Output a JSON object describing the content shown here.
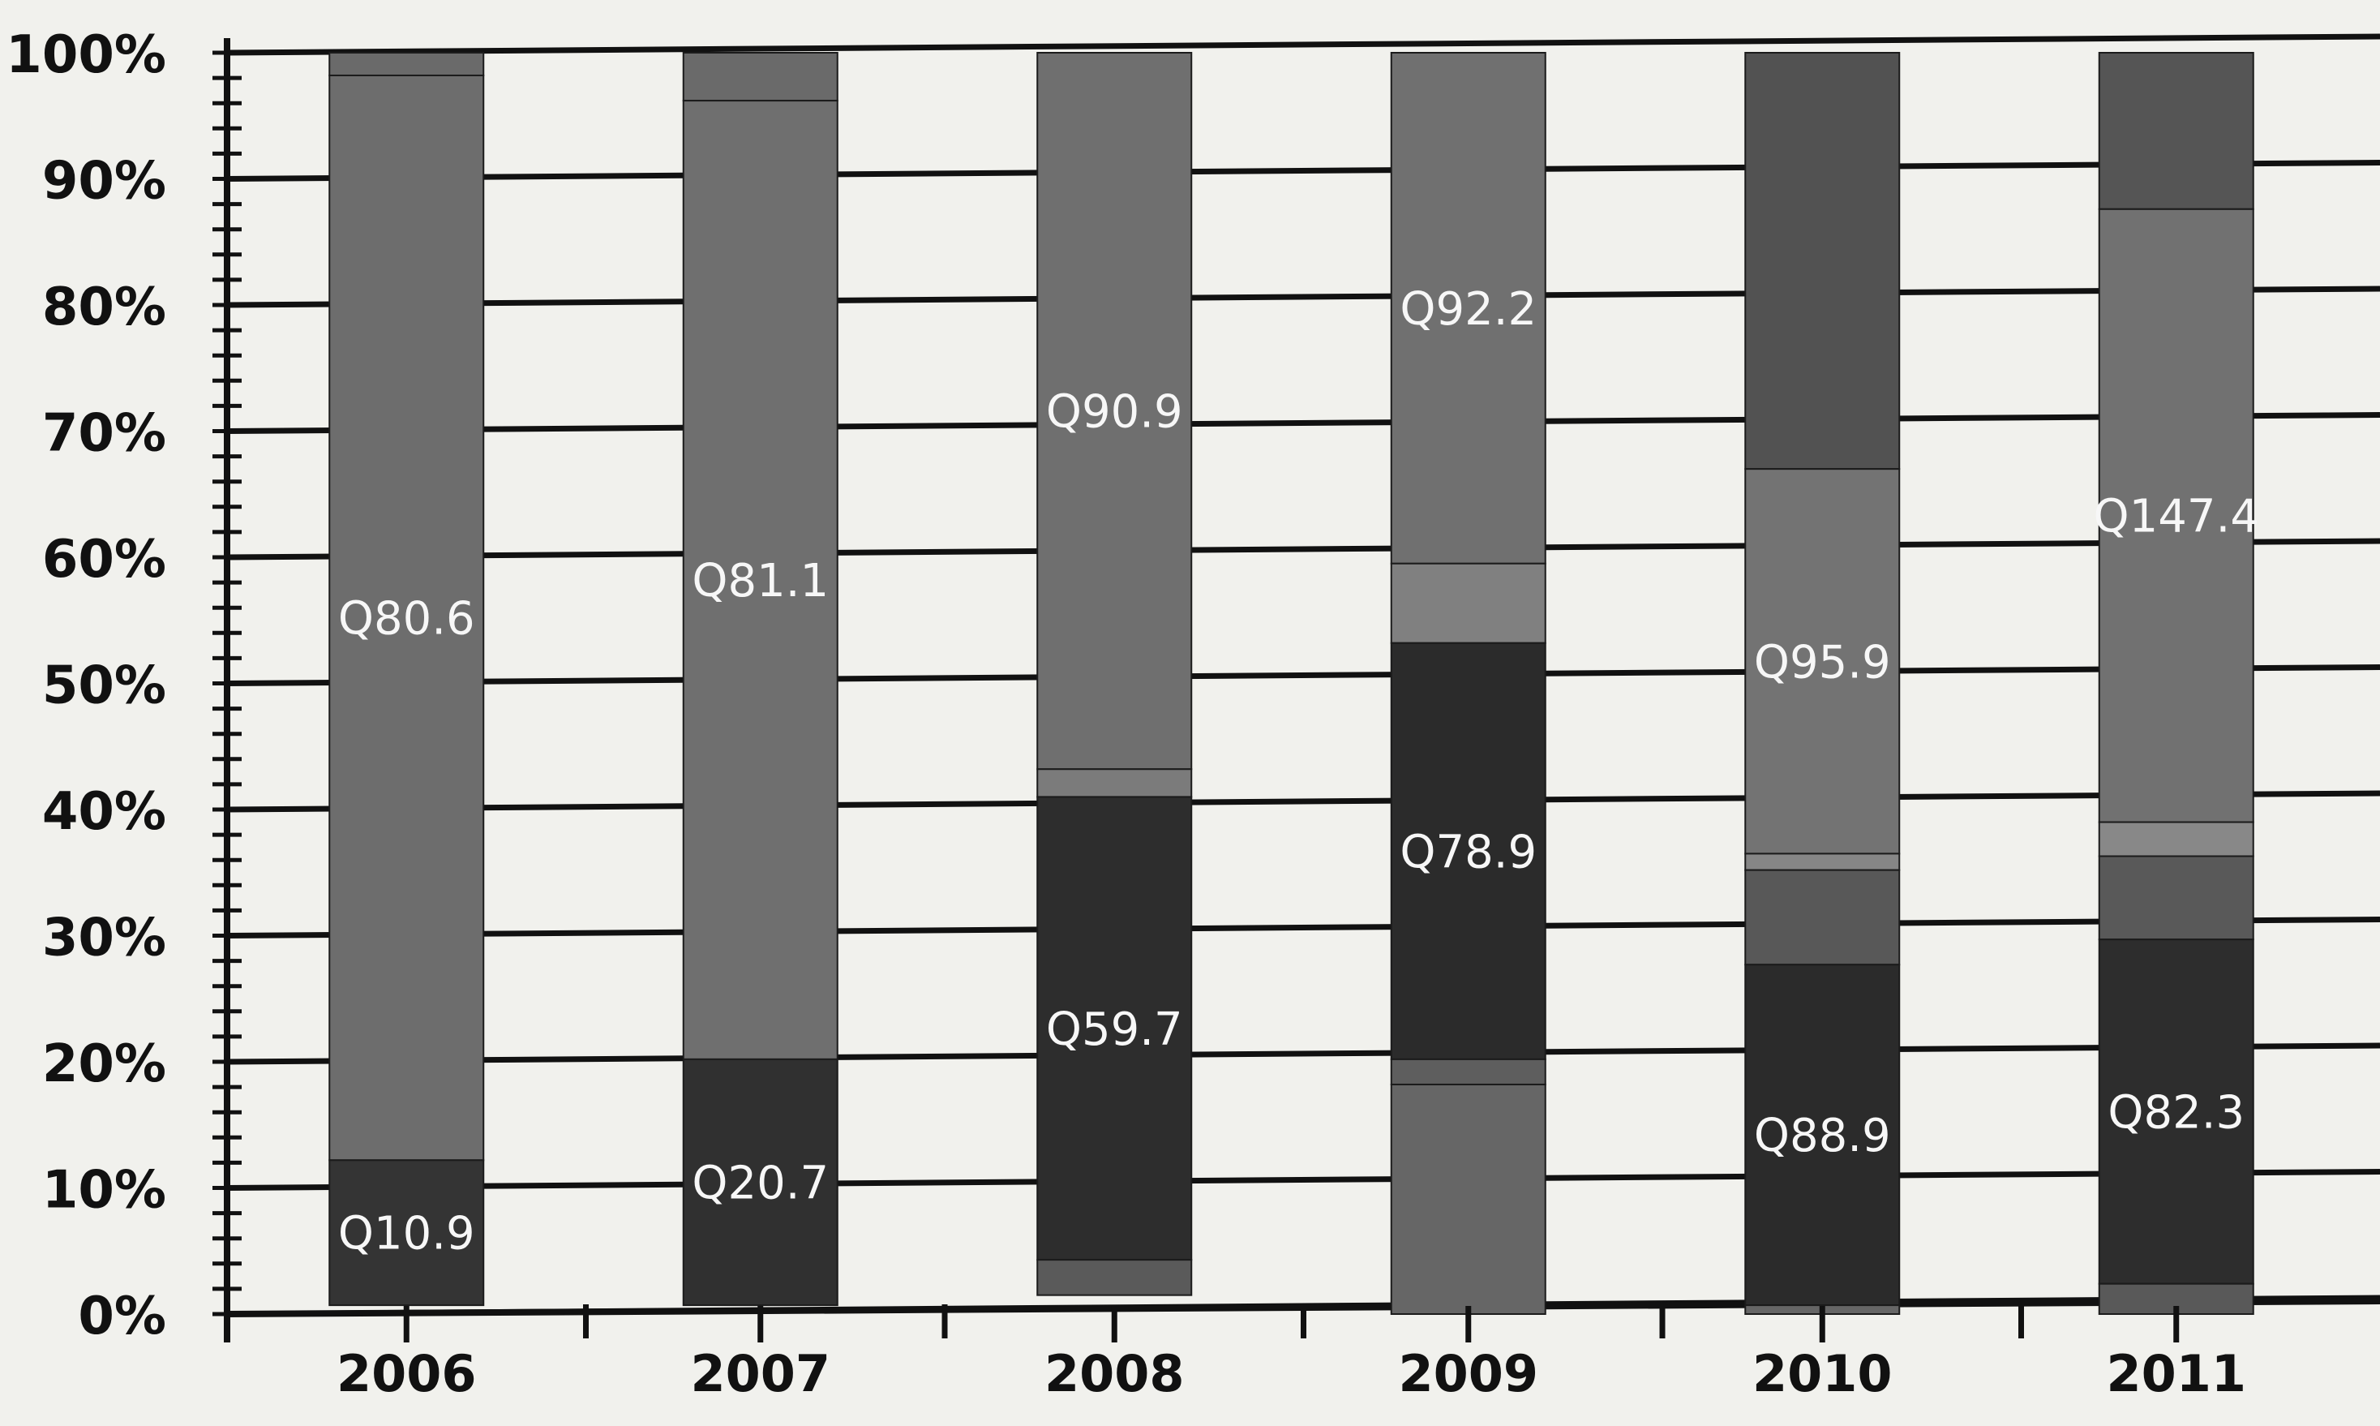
{
  "chart_data": {
    "type": "bar",
    "stacked": true,
    "categories": [
      "2006",
      "2007",
      "2008",
      "2009",
      "2010",
      "2011"
    ],
    "y_axis": {
      "ticks": [
        "0%",
        "10%",
        "20%",
        "30%",
        "40%",
        "50%",
        "60%",
        "70%",
        "80%",
        "90%",
        "100%"
      ],
      "ylim": [
        0,
        100
      ]
    },
    "grid": true,
    "legend": "none",
    "segments": [
      {
        "category": "2006",
        "parts": [
          {
            "value": 1.8,
            "label": "",
            "color": "#6a6a6a"
          },
          {
            "value": 86.0,
            "label": "Q80.6",
            "color": "#6d6d6d"
          },
          {
            "value": 11.5,
            "label": "Q10.9",
            "color": "#343434"
          }
        ]
      },
      {
        "category": "2007",
        "parts": [
          {
            "value": 3.8,
            "label": "",
            "color": "#6a6a6a"
          },
          {
            "value": 76.0,
            "label": "Q81.1",
            "color": "#6f6f6f"
          },
          {
            "value": 19.5,
            "label": "Q20.7",
            "color": "#303030"
          }
        ]
      },
      {
        "category": "2008",
        "parts": [
          {
            "value": 56.8,
            "label": "Q90.9",
            "color": "#6f6f6f"
          },
          {
            "value": 2.2,
            "label": "",
            "color": "#7b7b7b"
          },
          {
            "value": 36.7,
            "label": "Q59.7",
            "color": "#2d2d2d"
          },
          {
            "value": 2.8,
            "label": "",
            "color": "#5a5a5a"
          }
        ]
      },
      {
        "category": "2009",
        "parts": [
          {
            "value": 40.5,
            "label": "Q92.2",
            "color": "#707070"
          },
          {
            "value": 6.3,
            "label": "",
            "color": "#808080"
          },
          {
            "value": 33.0,
            "label": "Q78.9",
            "color": "#2b2b2b"
          },
          {
            "value": 2.0,
            "label": "",
            "color": "#5e5e5e"
          },
          {
            "value": 18.2,
            "label": "",
            "color": "#666666"
          }
        ]
      },
      {
        "category": "2010",
        "parts": [
          {
            "value": 33.0,
            "label": "",
            "color": "#525252"
          },
          {
            "value": 30.5,
            "label": "Q95.9",
            "color": "#737373"
          },
          {
            "value": 1.3,
            "label": "",
            "color": "#868686"
          },
          {
            "value": 7.5,
            "label": "",
            "color": "#585858"
          },
          {
            "value": 27.0,
            "label": "Q88.9",
            "color": "#2b2b2b"
          },
          {
            "value": 0.7,
            "label": "",
            "color": "#666666"
          }
        ]
      },
      {
        "category": "2011",
        "parts": [
          {
            "value": 12.4,
            "label": "",
            "color": "#555555"
          },
          {
            "value": 48.6,
            "label": "Q147.4",
            "color": "#717171"
          },
          {
            "value": 2.7,
            "label": "",
            "color": "#888888"
          },
          {
            "value": 6.6,
            "label": "",
            "color": "#595959"
          },
          {
            "value": 27.3,
            "label": "Q82.3",
            "color": "#2d2d2d"
          },
          {
            "value": 2.4,
            "label": "",
            "color": "#595959"
          }
        ]
      }
    ]
  }
}
